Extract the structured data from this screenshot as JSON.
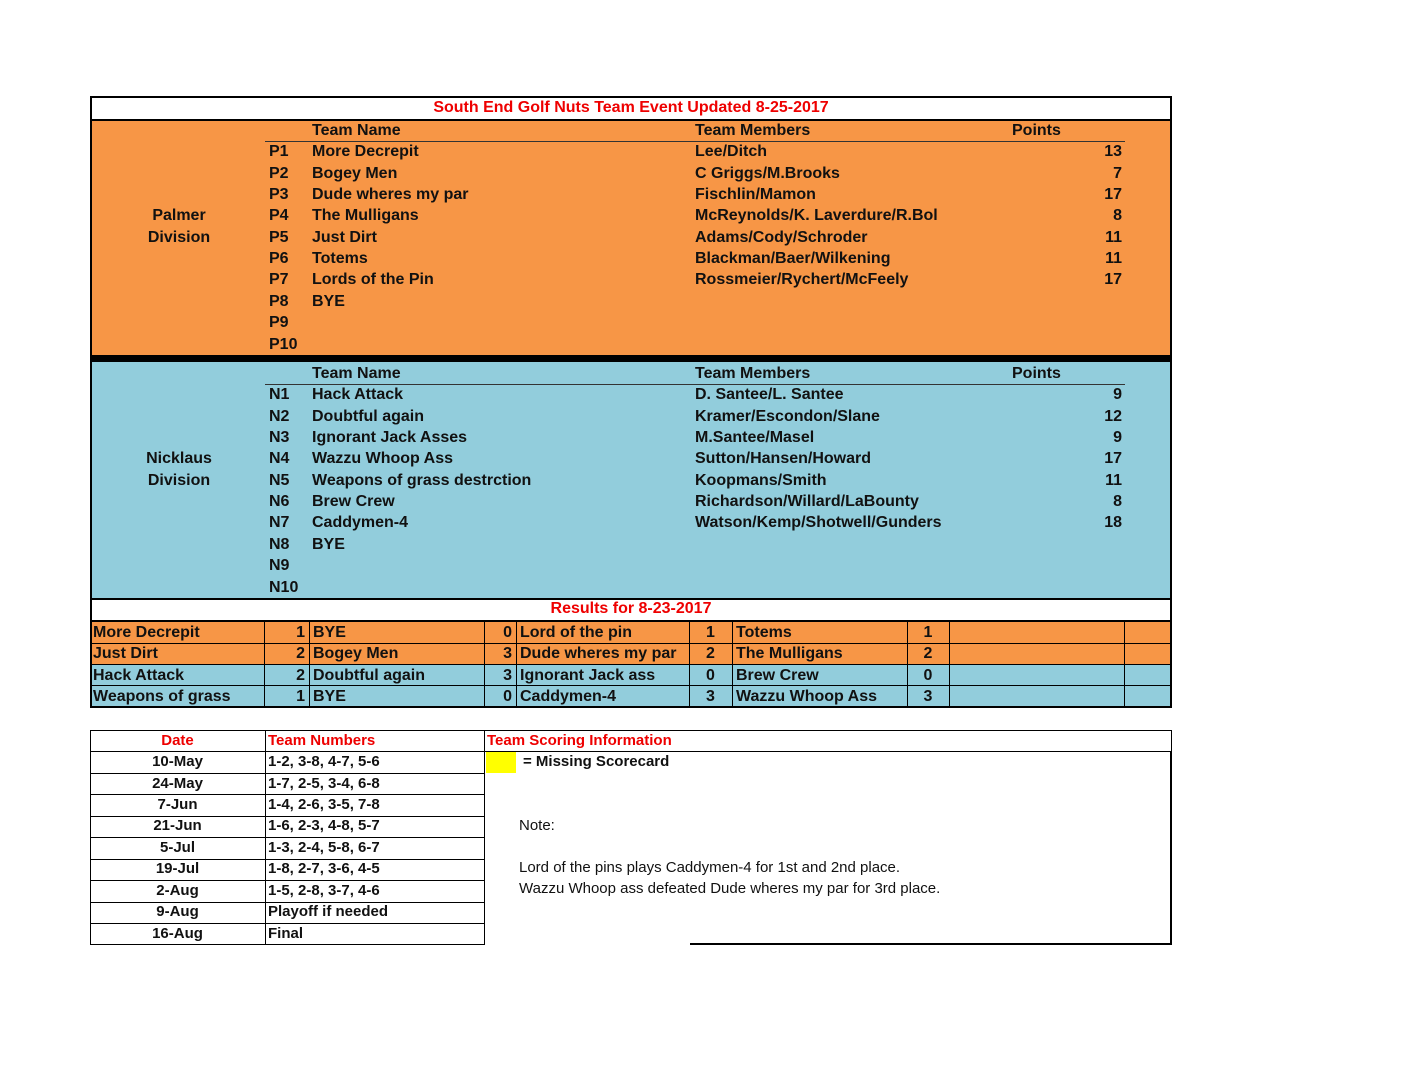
{
  "title": "South End Golf Nuts Team Event Updated 8-25-2017",
  "divisions": [
    {
      "label": [
        "Palmer",
        "Division"
      ],
      "headers": [
        "Team Name",
        "Team Members",
        "Points"
      ],
      "teams": [
        {
          "code": "P1",
          "name": "More Decrepit",
          "members": "Lee/Ditch",
          "points": 13
        },
        {
          "code": "P2",
          "name": "Bogey Men",
          "members": "C Griggs/M.Brooks",
          "points": 7
        },
        {
          "code": "P3",
          "name": "Dude wheres my par",
          "members": "Fischlin/Mamon",
          "points": 17
        },
        {
          "code": "P4",
          "name": "The Mulligans",
          "members": "McReynolds/K. Laverdure/R.Bol",
          "points": 8
        },
        {
          "code": "P5",
          "name": "Just Dirt",
          "members": "Adams/Cody/Schroder",
          "points": 11
        },
        {
          "code": "P6",
          "name": "Totems",
          "members": "Blackman/Baer/Wilkening",
          "points": 11
        },
        {
          "code": "P7",
          "name": "Lords of the Pin",
          "members": "Rossmeier/Rychert/McFeely",
          "points": 17
        },
        {
          "code": "P8",
          "name": "BYE"
        },
        {
          "code": "P9"
        },
        {
          "code": "P10"
        }
      ]
    },
    {
      "label": [
        "Nicklaus",
        "Division"
      ],
      "headers": [
        "Team Name",
        "Team Members",
        "Points"
      ],
      "teams": [
        {
          "code": "N1",
          "name": "Hack Attack",
          "members": "D. Santee/L. Santee",
          "points": 9
        },
        {
          "code": "N2",
          "name": "Doubtful again",
          "members": "Kramer/Escondon/Slane",
          "points": 12
        },
        {
          "code": "N3",
          "name": "Ignorant Jack Asses",
          "members": "M.Santee/Masel",
          "points": 9
        },
        {
          "code": "N4",
          "name": "Wazzu Whoop Ass",
          "members": "Sutton/Hansen/Howard",
          "points": 17
        },
        {
          "code": "N5",
          "name": "Weapons of grass destrction",
          "members": "Koopmans/Smith",
          "points": 11
        },
        {
          "code": "N6",
          "name": "Brew Crew",
          "members": "Richardson/Willard/LaBounty",
          "points": 8
        },
        {
          "code": "N7",
          "name": "Caddymen-4",
          "members": "Watson/Kemp/Shotwell/Gunders",
          "points": 18
        },
        {
          "code": "N8",
          "name": "BYE"
        },
        {
          "code": "N9"
        },
        {
          "code": "N10"
        }
      ]
    }
  ],
  "results": {
    "title": "Results for 8-23-2017",
    "rows": [
      [
        "More Decrepit",
        1,
        "BYE",
        0,
        "Lord of the pin",
        1,
        "Totems",
        1
      ],
      [
        "Just Dirt",
        2,
        "Bogey Men",
        3,
        "Dude wheres my par",
        2,
        "The Mulligans",
        2
      ],
      [
        "Hack Attack",
        2,
        "Doubtful again",
        3,
        "Ignorant Jack ass",
        0,
        "Brew Crew",
        0
      ],
      [
        "Weapons of grass",
        1,
        "BYE",
        0,
        "Caddymen-4",
        3,
        "Wazzu Whoop Ass",
        3
      ]
    ]
  },
  "schedule": {
    "headers": [
      "Date",
      "Team Numbers",
      "Team Scoring Information"
    ],
    "rows": [
      [
        "10-May",
        "1-2, 3-8, 4-7, 5-6"
      ],
      [
        "24-May",
        "1-7, 2-5, 3-4, 6-8"
      ],
      [
        "7-Jun",
        "1-4, 2-6, 3-5, 7-8"
      ],
      [
        "21-Jun",
        "1-6, 2-3, 4-8, 5-7"
      ],
      [
        "5-Jul",
        "1-3, 2-4, 5-8, 6-7"
      ],
      [
        "19-Jul",
        "1-8, 2-7, 3-6, 4-5"
      ],
      [
        "2-Aug",
        "1-5, 2-8, 3-7, 4-6"
      ],
      [
        "9-Aug",
        "Playoff if needed"
      ],
      [
        "16-Aug",
        "Final"
      ]
    ],
    "legend": "= Missing Scorecard",
    "note_label": "Note:",
    "notes": [
      "Lord of the pins plays Caddymen-4 for 1st and 2nd place.",
      "Wazzu Whoop ass defeated Dude wheres my par for 3rd place."
    ]
  }
}
